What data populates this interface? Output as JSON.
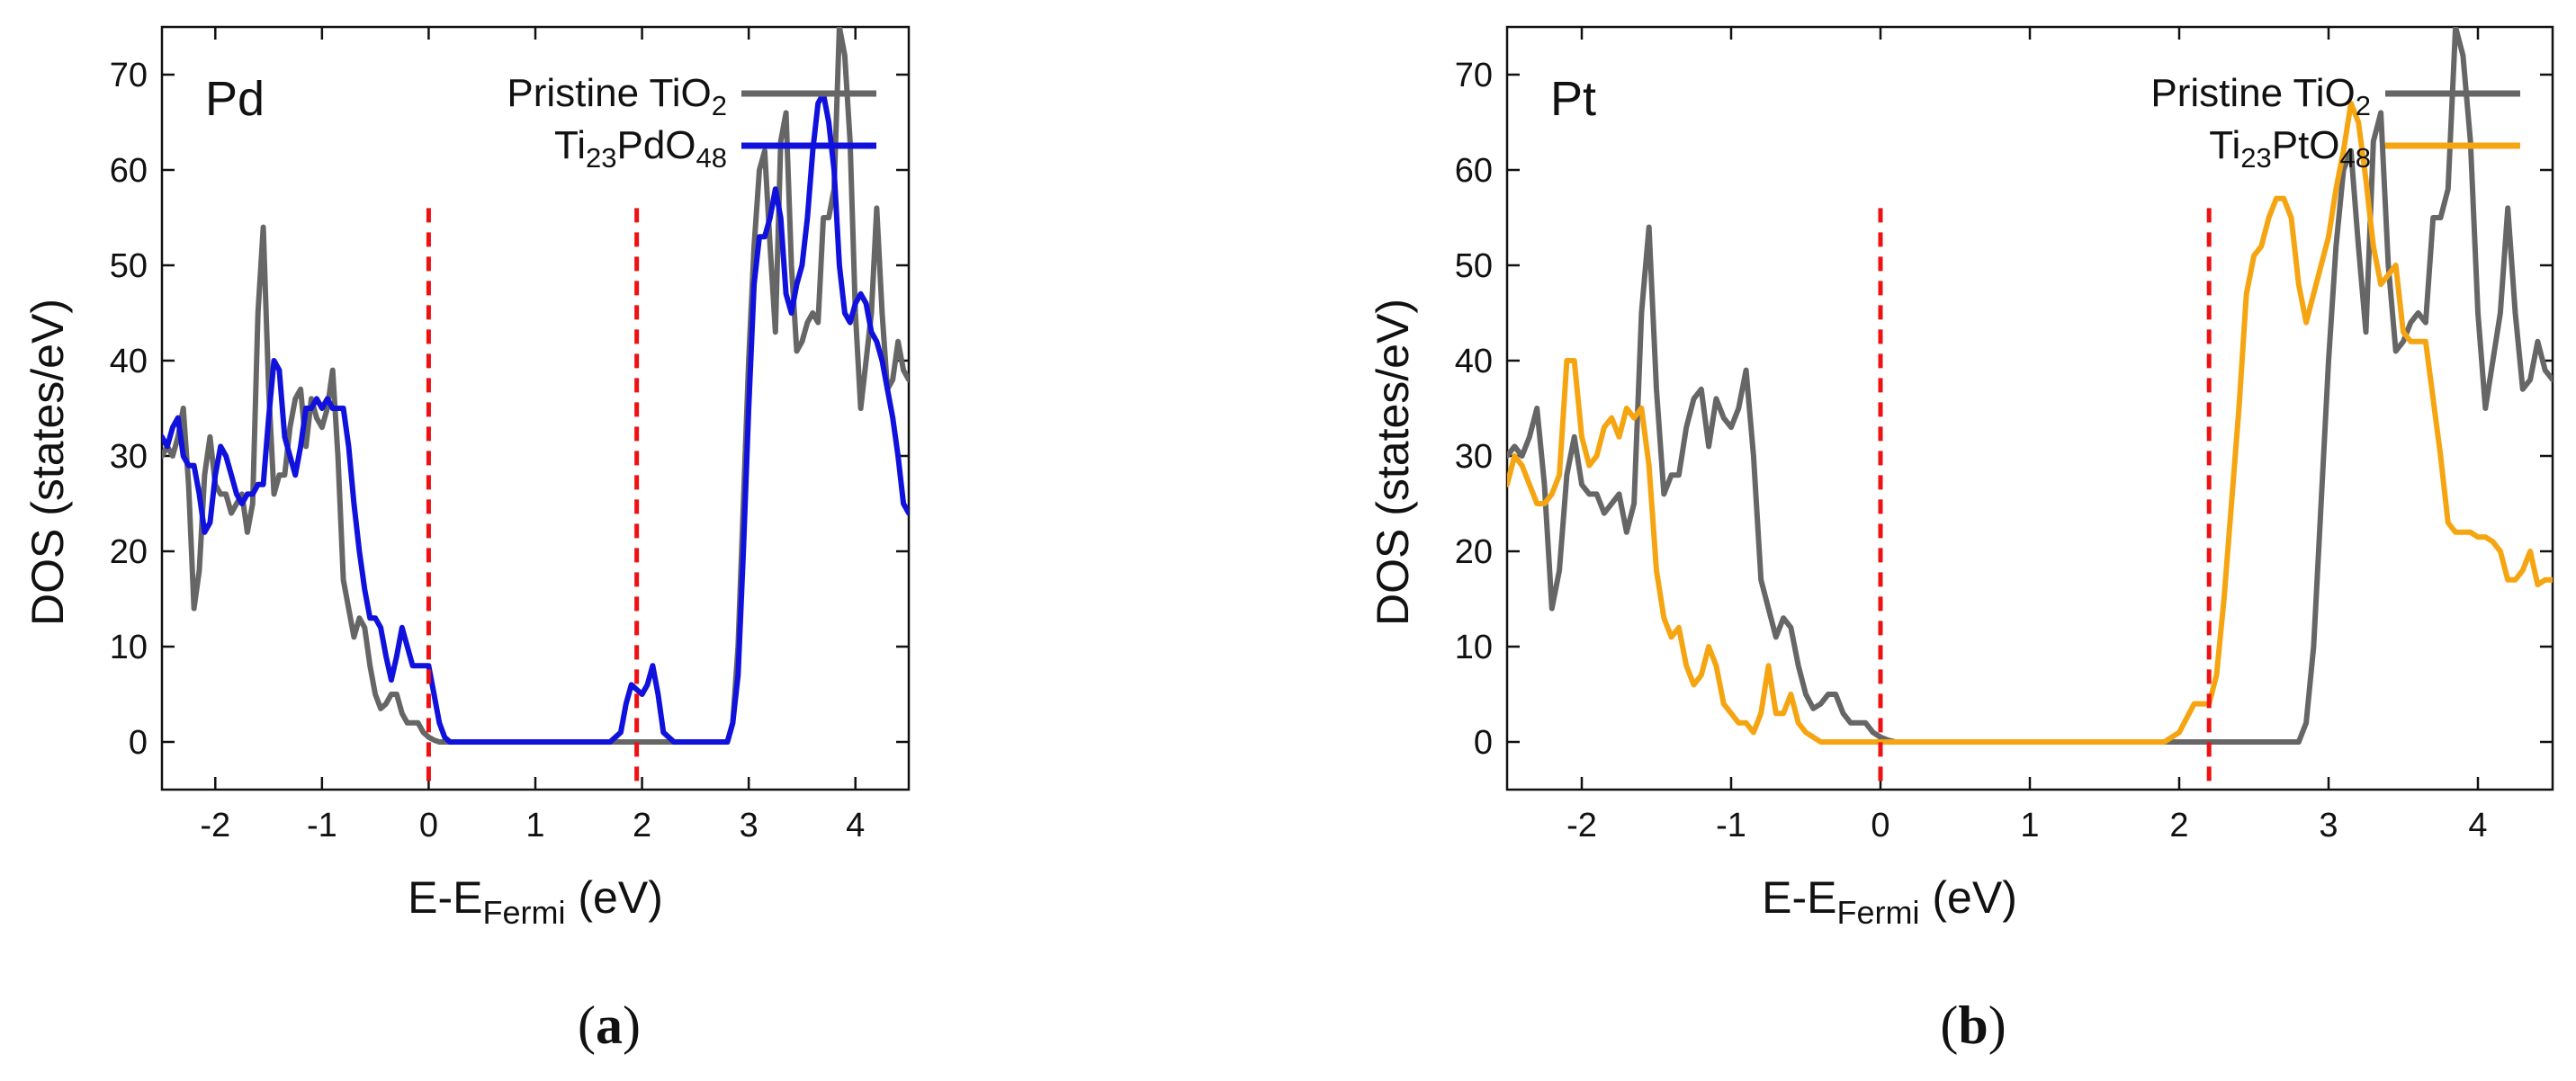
{
  "chart_data": [
    {
      "type": "line",
      "panel_label": "Pd",
      "caption_letter": "a",
      "caption_open": "(",
      "caption_close": ")",
      "xlabel_main": "E-E",
      "xlabel_sub": "Fermi",
      "xlabel_unit": " (eV)",
      "ylabel": "DOS (states/eV)",
      "xlim": [
        -2.5,
        4.5
      ],
      "ylim": [
        -5,
        75
      ],
      "xticks": [
        -2,
        -1,
        0,
        1,
        2,
        3,
        4
      ],
      "yticks": [
        0,
        10,
        20,
        30,
        40,
        50,
        60,
        70
      ],
      "legend_position": "top-right",
      "reference_lines": {
        "x": [
          0,
          1.95
        ],
        "color": "#ee1111"
      },
      "series": [
        {
          "name": "Pristine TiO2",
          "legend_parts": [
            [
              "Pristine TiO",
              "n"
            ],
            [
              "2",
              "s"
            ]
          ],
          "color": "#666666",
          "x": [
            -2.5,
            -2.45,
            -2.4,
            -2.35,
            -2.3,
            -2.25,
            -2.2,
            -2.15,
            -2.1,
            -2.05,
            -2.0,
            -1.95,
            -1.9,
            -1.85,
            -1.8,
            -1.75,
            -1.7,
            -1.65,
            -1.6,
            -1.55,
            -1.5,
            -1.45,
            -1.4,
            -1.35,
            -1.3,
            -1.25,
            -1.2,
            -1.15,
            -1.1,
            -1.05,
            -1.0,
            -0.95,
            -0.9,
            -0.85,
            -0.8,
            -0.75,
            -0.7,
            -0.65,
            -0.6,
            -0.55,
            -0.5,
            -0.45,
            -0.4,
            -0.35,
            -0.3,
            -0.25,
            -0.2,
            -0.15,
            -0.1,
            -0.05,
            0.0,
            0.05,
            0.1,
            0.15,
            0.2,
            2.8,
            2.85,
            2.9,
            2.95,
            3.0,
            3.05,
            3.1,
            3.15,
            3.2,
            3.25,
            3.3,
            3.35,
            3.4,
            3.45,
            3.5,
            3.55,
            3.6,
            3.65,
            3.7,
            3.75,
            3.8,
            3.85,
            3.9,
            3.95,
            4.0,
            4.05,
            4.1,
            4.15,
            4.2,
            4.25,
            4.3,
            4.35,
            4.4,
            4.45,
            4.5
          ],
          "y": [
            30,
            31,
            30,
            32,
            35,
            27,
            14,
            18,
            28,
            32,
            27,
            26,
            26,
            24,
            25,
            26,
            22,
            25,
            45,
            54,
            37,
            26,
            28,
            28,
            33,
            36,
            37,
            31,
            36,
            34,
            33,
            35,
            39,
            30,
            17,
            14,
            11,
            13,
            12,
            8,
            5,
            3.5,
            4,
            5,
            5,
            3,
            2,
            2,
            2,
            1,
            0.5,
            0.2,
            0,
            0,
            0,
            0,
            2,
            10,
            25,
            40,
            52,
            60,
            62,
            52,
            43,
            63,
            66,
            50,
            41,
            42,
            44,
            45,
            44,
            55,
            55,
            58,
            75,
            72,
            63,
            45,
            35,
            40,
            45,
            56,
            45,
            37,
            38,
            42,
            39,
            38
          ]
        },
        {
          "name": "Ti23PdO48",
          "legend_parts": [
            [
              "Ti",
              "n"
            ],
            [
              "23",
              "s"
            ],
            [
              "PdO",
              "n"
            ],
            [
              "48",
              "s"
            ]
          ],
          "color": "#1111dd",
          "x": [
            -2.5,
            -2.45,
            -2.4,
            -2.35,
            -2.3,
            -2.25,
            -2.2,
            -2.15,
            -2.1,
            -2.05,
            -2.0,
            -1.95,
            -1.9,
            -1.85,
            -1.8,
            -1.75,
            -1.7,
            -1.65,
            -1.6,
            -1.55,
            -1.5,
            -1.45,
            -1.4,
            -1.35,
            -1.3,
            -1.25,
            -1.2,
            -1.15,
            -1.1,
            -1.05,
            -1.0,
            -0.95,
            -0.9,
            -0.85,
            -0.8,
            -0.75,
            -0.7,
            -0.65,
            -0.6,
            -0.55,
            -0.5,
            -0.45,
            -0.4,
            -0.35,
            -0.3,
            -0.25,
            -0.2,
            -0.15,
            -0.1,
            -0.05,
            0.0,
            0.05,
            0.1,
            0.15,
            0.2,
            0.3,
            1.7,
            1.8,
            1.85,
            1.9,
            1.95,
            2.0,
            2.05,
            2.1,
            2.15,
            2.2,
            2.3,
            2.8,
            2.85,
            2.9,
            2.95,
            3.0,
            3.05,
            3.1,
            3.15,
            3.2,
            3.25,
            3.3,
            3.35,
            3.4,
            3.45,
            3.5,
            3.55,
            3.6,
            3.65,
            3.7,
            3.75,
            3.8,
            3.85,
            3.9,
            3.95,
            4.0,
            4.05,
            4.1,
            4.15,
            4.2,
            4.25,
            4.3,
            4.35,
            4.4,
            4.45,
            4.5
          ],
          "y": [
            32,
            31,
            33,
            34,
            30,
            29,
            29,
            26,
            22,
            23,
            28,
            31,
            30,
            28,
            26,
            25,
            26,
            26,
            27,
            27,
            34,
            40,
            39,
            32,
            30,
            28,
            31,
            35,
            35,
            36,
            35,
            36,
            35,
            35,
            35,
            31,
            25,
            20,
            16,
            13,
            13,
            12,
            9,
            6.5,
            9,
            12,
            10,
            8,
            8,
            8,
            8,
            5,
            2,
            0.5,
            0,
            0,
            0,
            1,
            4,
            6,
            5.5,
            5,
            6,
            8,
            5,
            1,
            0,
            0,
            2,
            7,
            20,
            35,
            48,
            53,
            53,
            55,
            58,
            55,
            47,
            45,
            48,
            50,
            55,
            62,
            67,
            68,
            65,
            60,
            50,
            45,
            44,
            46,
            47,
            46,
            43,
            42,
            40,
            37,
            34,
            30,
            25,
            24
          ]
        }
      ]
    },
    {
      "type": "line",
      "panel_label": "Pt",
      "caption_letter": "b",
      "caption_open": "(",
      "caption_close": ")",
      "xlabel_main": "E-E",
      "xlabel_sub": "Fermi",
      "xlabel_unit": " (eV)",
      "ylabel": "DOS (states/eV)",
      "xlim": [
        -2.5,
        4.5
      ],
      "ylim": [
        -5,
        75
      ],
      "xticks": [
        -2,
        -1,
        0,
        1,
        2,
        3,
        4
      ],
      "yticks": [
        0,
        10,
        20,
        30,
        40,
        50,
        60,
        70
      ],
      "legend_position": "top-right",
      "reference_lines": {
        "x": [
          0,
          2.2
        ],
        "color": "#ee1111"
      },
      "series": [
        {
          "name": "Pristine TiO2",
          "legend_parts": [
            [
              "Pristine TiO",
              "n"
            ],
            [
              "2",
              "s"
            ]
          ],
          "color": "#666666",
          "x": [
            -2.5,
            -2.45,
            -2.4,
            -2.35,
            -2.3,
            -2.25,
            -2.2,
            -2.15,
            -2.1,
            -2.05,
            -2.0,
            -1.95,
            -1.9,
            -1.85,
            -1.8,
            -1.75,
            -1.7,
            -1.65,
            -1.6,
            -1.55,
            -1.5,
            -1.45,
            -1.4,
            -1.35,
            -1.3,
            -1.25,
            -1.2,
            -1.15,
            -1.1,
            -1.05,
            -1.0,
            -0.95,
            -0.9,
            -0.85,
            -0.8,
            -0.75,
            -0.7,
            -0.65,
            -0.6,
            -0.55,
            -0.5,
            -0.45,
            -0.4,
            -0.35,
            -0.3,
            -0.25,
            -0.2,
            -0.15,
            -0.1,
            -0.05,
            0.0,
            0.05,
            0.1,
            0.15,
            0.2,
            2.8,
            2.85,
            2.9,
            2.95,
            3.0,
            3.05,
            3.1,
            3.15,
            3.2,
            3.25,
            3.3,
            3.35,
            3.4,
            3.45,
            3.5,
            3.55,
            3.6,
            3.65,
            3.7,
            3.75,
            3.8,
            3.85,
            3.9,
            3.95,
            4.0,
            4.05,
            4.1,
            4.15,
            4.2,
            4.25,
            4.3,
            4.35,
            4.4,
            4.45,
            4.5
          ],
          "y": [
            30,
            31,
            30,
            32,
            35,
            27,
            14,
            18,
            28,
            32,
            27,
            26,
            26,
            24,
            25,
            26,
            22,
            25,
            45,
            54,
            37,
            26,
            28,
            28,
            33,
            36,
            37,
            31,
            36,
            34,
            33,
            35,
            39,
            30,
            17,
            14,
            11,
            13,
            12,
            8,
            5,
            3.5,
            4,
            5,
            5,
            3,
            2,
            2,
            2,
            1,
            0.5,
            0.2,
            0,
            0,
            0,
            0,
            2,
            10,
            25,
            40,
            52,
            60,
            62,
            52,
            43,
            63,
            66,
            50,
            41,
            42,
            44,
            45,
            44,
            55,
            55,
            58,
            75,
            72,
            63,
            45,
            35,
            40,
            45,
            56,
            45,
            37,
            38,
            42,
            39,
            38
          ]
        },
        {
          "name": "Ti23PtO48",
          "legend_parts": [
            [
              "Ti",
              "n"
            ],
            [
              "23",
              "s"
            ],
            [
              "PtO",
              "n"
            ],
            [
              "48",
              "s"
            ]
          ],
          "color": "#f5a511",
          "x": [
            -2.5,
            -2.45,
            -2.4,
            -2.35,
            -2.3,
            -2.25,
            -2.2,
            -2.15,
            -2.1,
            -2.05,
            -2.0,
            -1.95,
            -1.9,
            -1.85,
            -1.8,
            -1.75,
            -1.7,
            -1.65,
            -1.6,
            -1.55,
            -1.5,
            -1.45,
            -1.4,
            -1.35,
            -1.3,
            -1.25,
            -1.2,
            -1.15,
            -1.1,
            -1.05,
            -1.0,
            -0.95,
            -0.9,
            -0.85,
            -0.8,
            -0.75,
            -0.7,
            -0.65,
            -0.6,
            -0.55,
            -0.5,
            -0.45,
            -0.4,
            -0.35,
            -0.3,
            -0.25,
            -0.2,
            -0.15,
            -0.1,
            -0.05,
            0.0,
            0.05,
            0.1,
            0.15,
            0.2,
            1.9,
            2.0,
            2.05,
            2.1,
            2.15,
            2.2,
            2.25,
            2.3,
            2.35,
            2.4,
            2.45,
            2.5,
            2.55,
            2.6,
            2.65,
            2.7,
            2.75,
            2.8,
            2.85,
            2.9,
            2.95,
            3.0,
            3.05,
            3.1,
            3.15,
            3.2,
            3.25,
            3.3,
            3.35,
            3.4,
            3.45,
            3.5,
            3.55,
            3.6,
            3.65,
            3.7,
            3.75,
            3.8,
            3.85,
            3.9,
            3.95,
            4.0,
            4.05,
            4.1,
            4.15,
            4.2,
            4.25,
            4.3,
            4.35,
            4.4,
            4.45,
            4.5
          ],
          "y": [
            27,
            30,
            29,
            27,
            25,
            25,
            26,
            28,
            40,
            40,
            32,
            29,
            30,
            33,
            34,
            32,
            35,
            34,
            35,
            29,
            18,
            13,
            11,
            12,
            8,
            6,
            7,
            10,
            8,
            4,
            3,
            2,
            2,
            1,
            3,
            8,
            3,
            3,
            5,
            2,
            1,
            0.5,
            0,
            0,
            0,
            0,
            0,
            0,
            0,
            0,
            0,
            0,
            0,
            0,
            0,
            0,
            1,
            2.5,
            4,
            4,
            4,
            7,
            15,
            25,
            35,
            47,
            51,
            52,
            55,
            57,
            57,
            55,
            48,
            44,
            47,
            50,
            53,
            58,
            62,
            67,
            65,
            59,
            52,
            48,
            49,
            50,
            43,
            42,
            42,
            42,
            36,
            30,
            23,
            22,
            22,
            22,
            21.5,
            21.5,
            21,
            20,
            17,
            17,
            18,
            20,
            16.5,
            17,
            17
          ]
        }
      ]
    }
  ]
}
